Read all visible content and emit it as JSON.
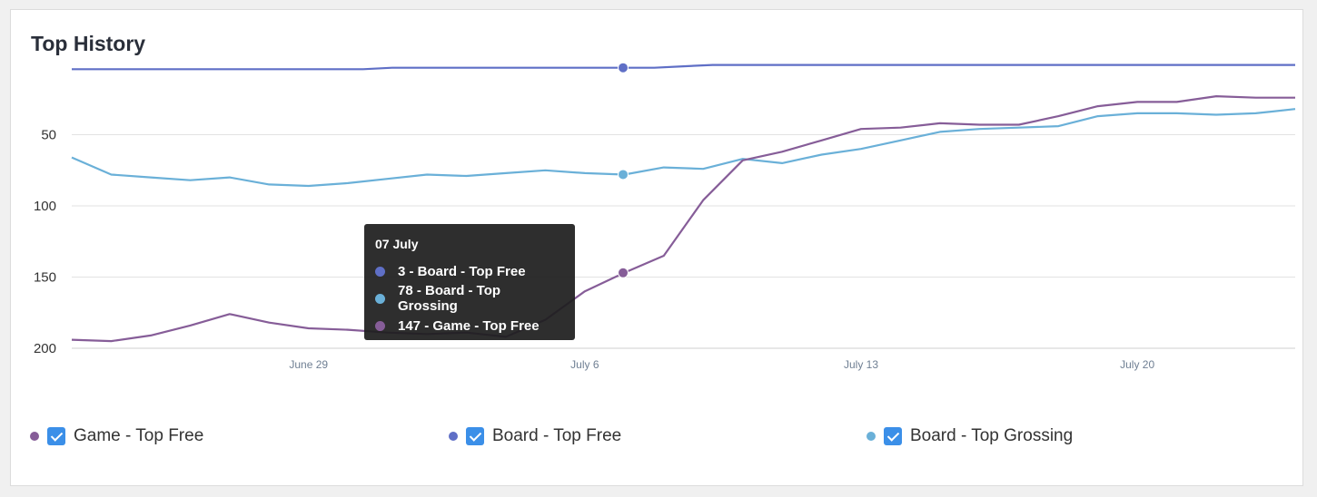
{
  "title": "Top History",
  "chart_data": {
    "type": "line",
    "ylabel": "",
    "xlabel": "",
    "y_reversed": true,
    "ylim": [
      0,
      200
    ],
    "y_ticks": [
      "50",
      "100",
      "150",
      "200"
    ],
    "x_ticks": [
      "June 29",
      "July 6",
      "July 13",
      "July 20"
    ],
    "series": [
      {
        "name": "Board - Top Free",
        "color": "#5f6fc6",
        "values": [
          4,
          4,
          4,
          4,
          4,
          4,
          4,
          4,
          4,
          4,
          4,
          3,
          3,
          3,
          3,
          3,
          3,
          3,
          3,
          3,
          3,
          2,
          1,
          1,
          1,
          1,
          1,
          1,
          1,
          1,
          1,
          1,
          1,
          1,
          1,
          1,
          1,
          1,
          1,
          1,
          1,
          1,
          1
        ]
      },
      {
        "name": "Board - Top Grossing",
        "color": "#6ab0d8",
        "values": [
          66,
          78,
          80,
          82,
          80,
          85,
          86,
          84,
          81,
          78,
          79,
          77,
          75,
          77,
          78,
          73,
          74,
          67,
          70,
          64,
          60,
          54,
          48,
          46,
          45,
          44,
          37,
          35,
          35,
          36,
          35,
          32
        ]
      },
      {
        "name": "Game - Top Free",
        "color": "#865d98",
        "values": [
          194,
          195,
          191,
          184,
          176,
          182,
          186,
          187,
          189,
          190,
          189,
          192,
          180,
          160,
          147,
          135,
          96,
          68,
          62,
          54,
          46,
          45,
          42,
          43,
          43,
          37,
          30,
          27,
          27,
          23,
          24,
          24
        ]
      }
    ],
    "tooltip": {
      "title": "07 July",
      "rows": [
        "3 - Board - Top Free",
        "78 - Board - Top Grossing",
        "147 - Game - Top Free"
      ]
    },
    "legend": [
      "Game - Top Free",
      "Board - Top Free",
      "Board - Top Grossing"
    ],
    "legend_placement": "bottom",
    "grid": true
  }
}
